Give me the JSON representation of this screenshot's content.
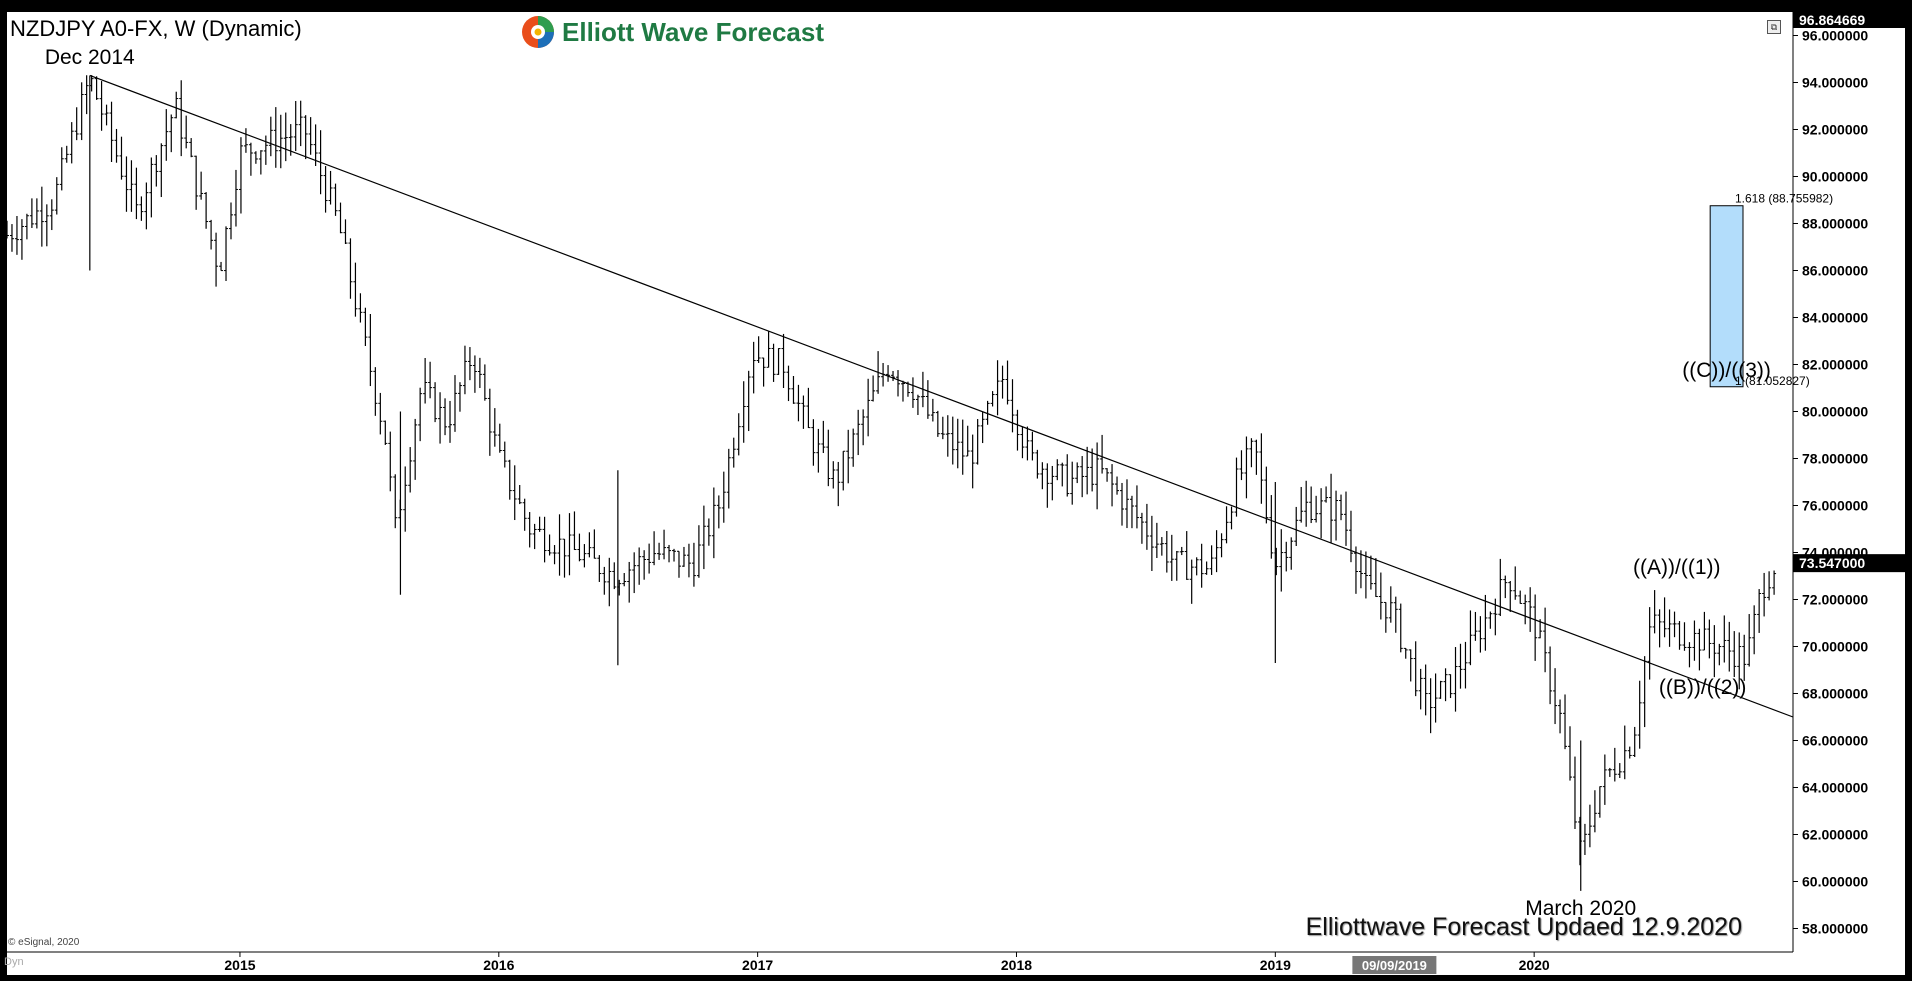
{
  "header": {
    "symbol_title": "NZDJPY A0-FX, W (Dynamic)",
    "brand": "Elliott Wave Forecast",
    "brand_icon": "swirl-logo-icon"
  },
  "footer": {
    "updated_text": "Elliottwave Forecast Updaed 12.9.2020",
    "copyright": "© eSignal, 2020",
    "mode": "Dyn",
    "cursor_date": "09/09/2019"
  },
  "colors": {
    "background": "#ffffff",
    "bars": "#000000",
    "target_box": "#b3ddfb",
    "frame": "#000000"
  },
  "chart_data": {
    "type": "bar",
    "style": "ohlc-weekly",
    "title": "NZDJPY A0-FX, W (Dynamic)",
    "x_ticks": [
      "2015",
      "2016",
      "2017",
      "2018",
      "2019",
      "2020"
    ],
    "xlim": [
      2014.1,
      2021.0
    ],
    "ylim": [
      57.0,
      97.0
    ],
    "y_ticks": [
      "58.000000",
      "60.000000",
      "62.000000",
      "64.000000",
      "66.000000",
      "68.000000",
      "70.000000",
      "72.000000",
      "74.000000",
      "76.000000",
      "78.000000",
      "80.000000",
      "82.000000",
      "84.000000",
      "86.000000",
      "88.000000",
      "90.000000",
      "92.000000",
      "94.000000",
      "96.000000"
    ],
    "y_tick_values": [
      58,
      60,
      62,
      64,
      66,
      68,
      70,
      72,
      74,
      76,
      78,
      80,
      82,
      84,
      86,
      88,
      90,
      92,
      94,
      96
    ],
    "last_price": 73.547,
    "last_price_label": "73.547000",
    "top_price_label": "96.864669",
    "cursor_x": 2019.46,
    "price_anchors": [
      [
        2014.1,
        87.5
      ],
      [
        2014.28,
        89
      ],
      [
        2014.42,
        94.2
      ],
      [
        2014.6,
        88.5
      ],
      [
        2014.75,
        93
      ],
      [
        2014.92,
        86
      ],
      [
        2015.0,
        91
      ],
      [
        2015.25,
        92
      ],
      [
        2015.38,
        88
      ],
      [
        2015.48,
        83
      ],
      [
        2015.56,
        79
      ],
      [
        2015.6,
        75
      ],
      [
        2015.7,
        81
      ],
      [
        2015.8,
        79.5
      ],
      [
        2015.9,
        82.5
      ],
      [
        2016.0,
        78
      ],
      [
        2016.12,
        75
      ],
      [
        2016.3,
        74
      ],
      [
        2016.45,
        73
      ],
      [
        2016.6,
        74
      ],
      [
        2016.75,
        73.5
      ],
      [
        2016.85,
        76
      ],
      [
        2016.98,
        82.5
      ],
      [
        2017.1,
        82
      ],
      [
        2017.2,
        79
      ],
      [
        2017.3,
        77
      ],
      [
        2017.5,
        82
      ],
      [
        2017.6,
        81
      ],
      [
        2017.7,
        79
      ],
      [
        2017.82,
        78
      ],
      [
        2017.95,
        81.5
      ],
      [
        2018.05,
        78
      ],
      [
        2018.2,
        77
      ],
      [
        2018.32,
        77.5
      ],
      [
        2018.5,
        75
      ],
      [
        2018.62,
        73.5
      ],
      [
        2018.75,
        73.3
      ],
      [
        2018.85,
        77
      ],
      [
        2018.92,
        78.5
      ],
      [
        2019.0,
        73.5
      ],
      [
        2019.12,
        76
      ],
      [
        2019.25,
        75.8
      ],
      [
        2019.35,
        72.5
      ],
      [
        2019.45,
        71.5
      ],
      [
        2019.58,
        67.5
      ],
      [
        2019.68,
        68.5
      ],
      [
        2019.78,
        70.5
      ],
      [
        2019.9,
        73
      ],
      [
        2020.0,
        71
      ],
      [
        2020.1,
        67
      ],
      [
        2020.18,
        61
      ],
      [
        2020.25,
        64
      ],
      [
        2020.38,
        66
      ],
      [
        2020.45,
        71
      ],
      [
        2020.58,
        70.5
      ],
      [
        2020.72,
        70
      ],
      [
        2020.82,
        69.5
      ],
      [
        2020.88,
        72.5
      ],
      [
        2020.93,
        73.5
      ]
    ],
    "trendline": {
      "start": [
        2014.42,
        94.3
      ],
      "end": [
        2021.0,
        67.0
      ]
    },
    "target_zone": {
      "x_range": [
        2020.68,
        2021.0
      ],
      "y_low": 81.052827,
      "y_high": 88.755982,
      "label": "((C))/((3))",
      "top_label": "1.618 (88.755982)",
      "bottom_label": "1 (81.052827)"
    },
    "annotations": [
      {
        "text": "Dec 2014",
        "x": 2014.42,
        "y": 94.2,
        "anchor": "above"
      },
      {
        "text": "March 2020",
        "x": 2020.18,
        "y": 59.6,
        "anchor": "below"
      },
      {
        "text": "((A))/((1))",
        "x": 2020.55,
        "y": 72.5,
        "anchor": "above"
      },
      {
        "text": "((B))/((2))",
        "x": 2020.65,
        "y": 69.0,
        "anchor": "below"
      }
    ]
  }
}
